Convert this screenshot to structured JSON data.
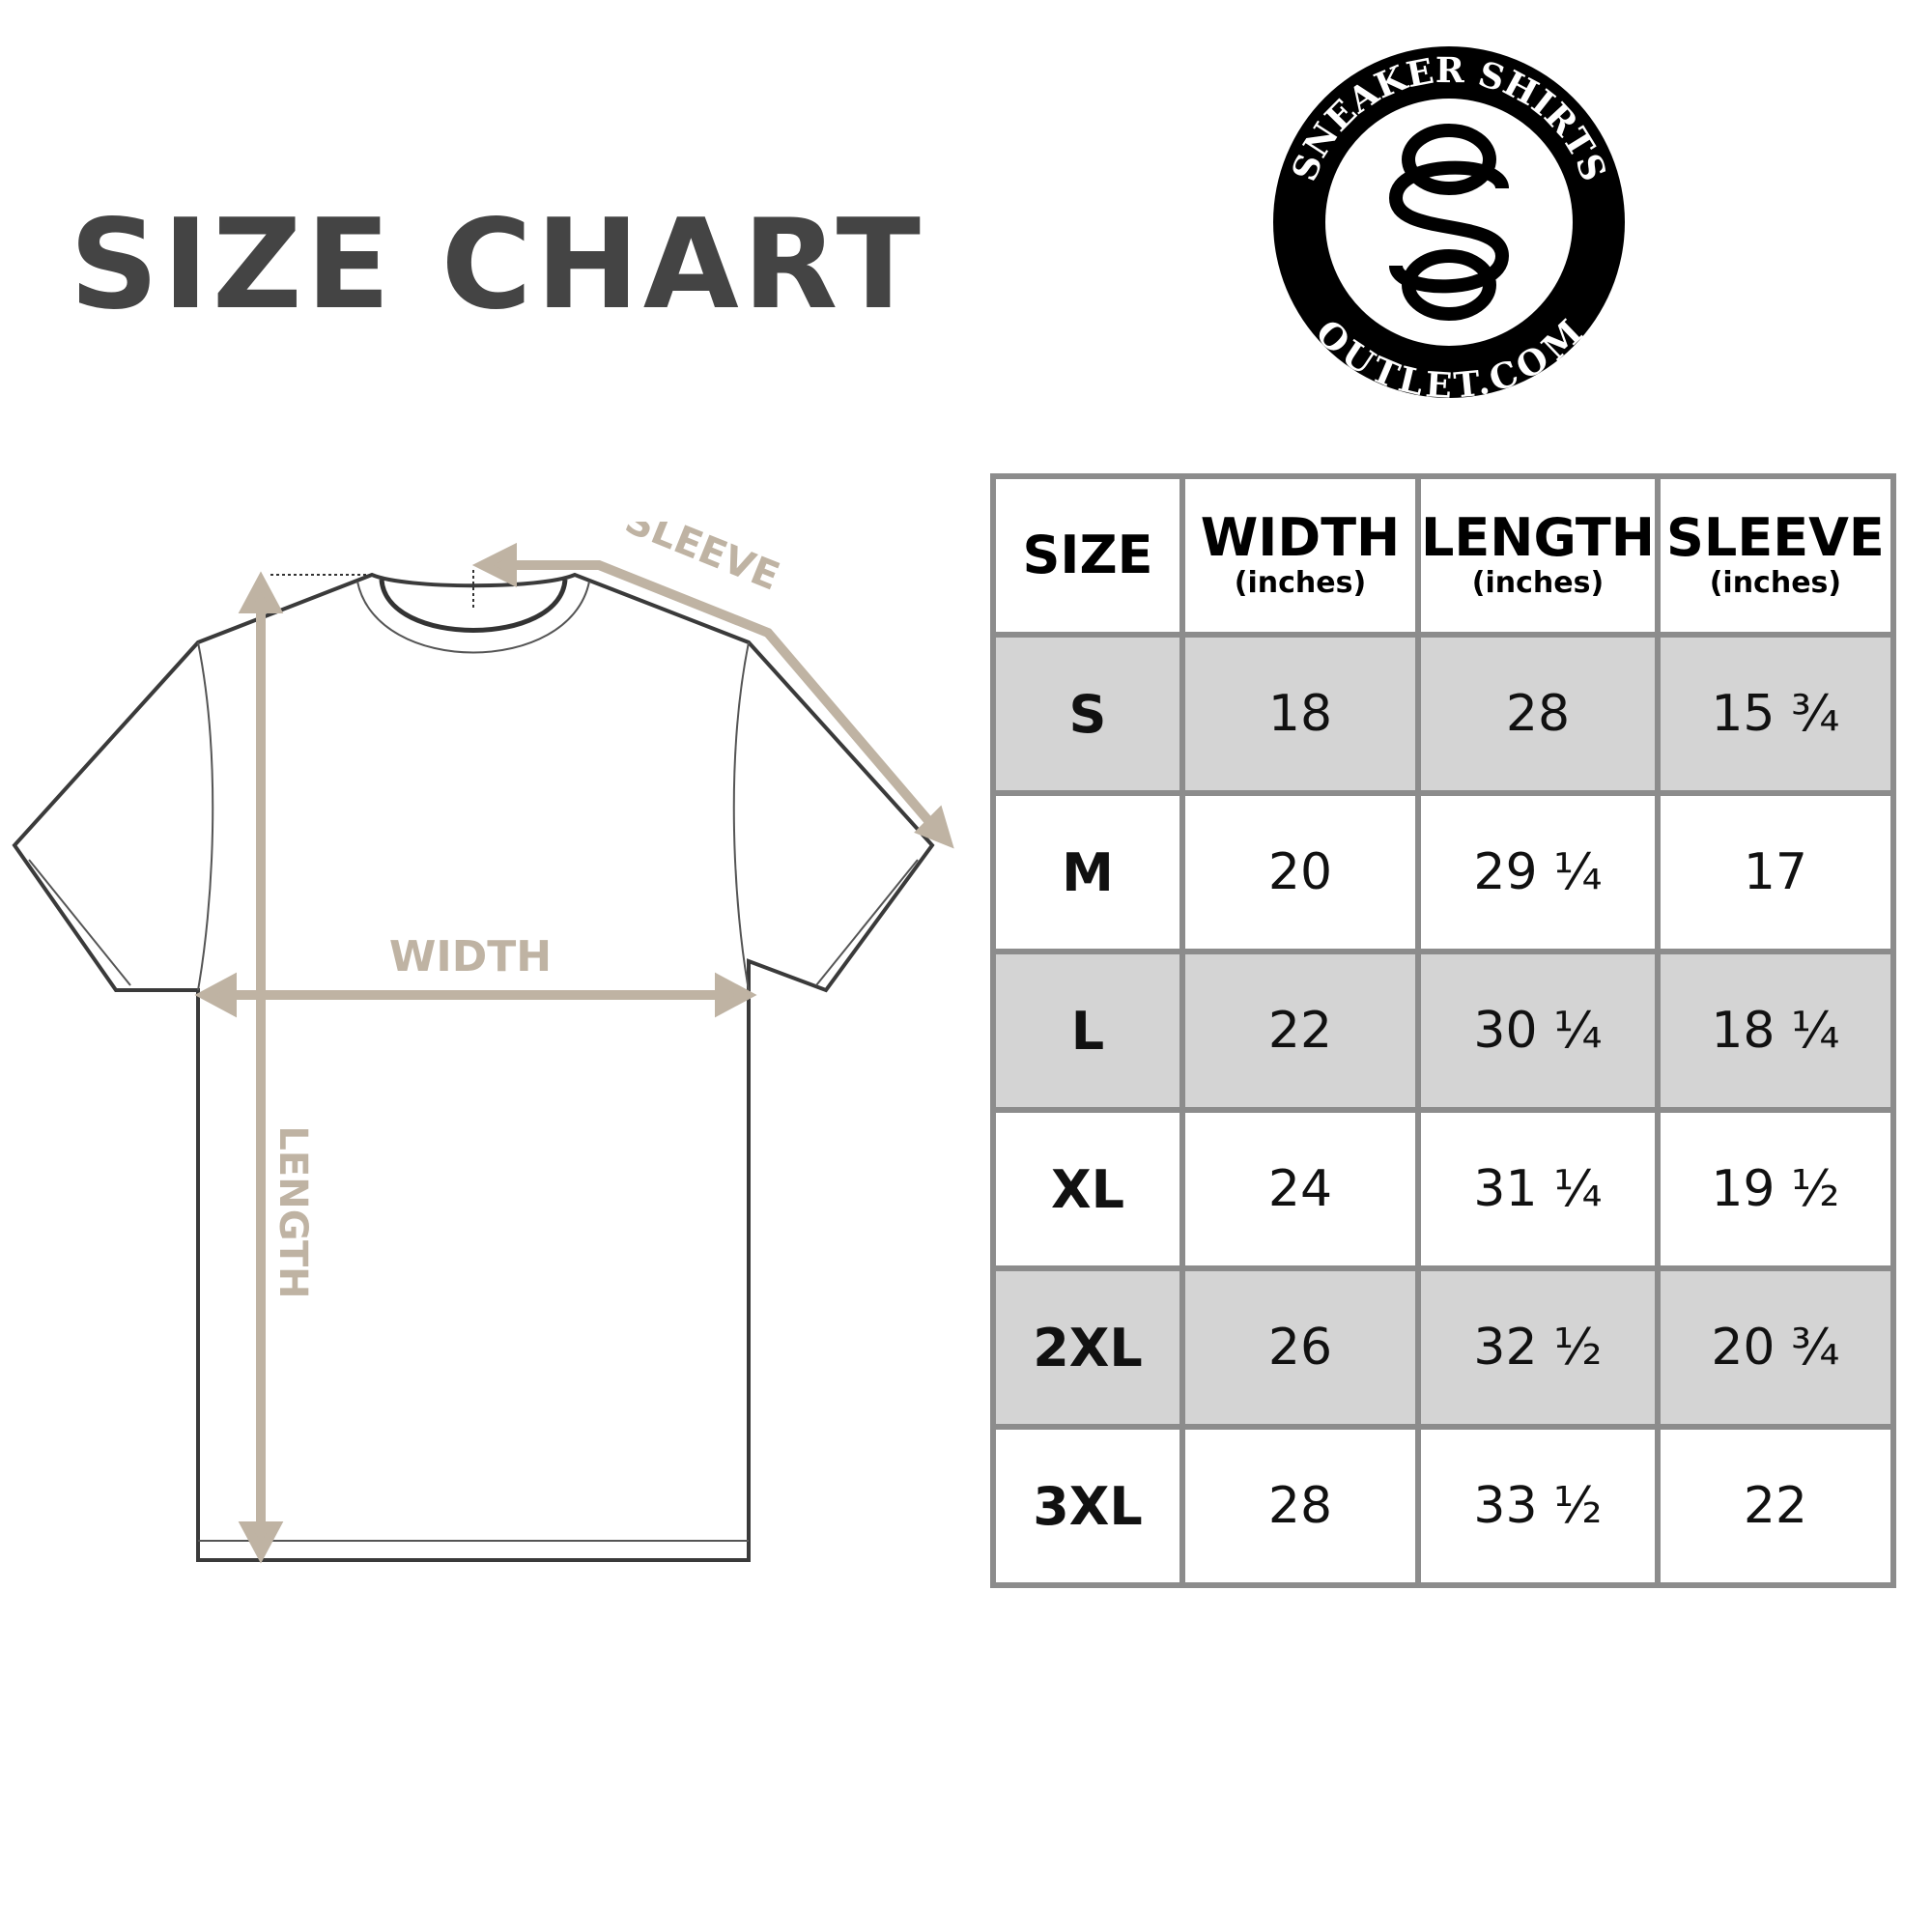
{
  "title": "SIZE CHART",
  "logo": {
    "top_text": "SNEAKER SHIRTS",
    "bottom_text": "OUTLET.COM",
    "monogram": "SSO"
  },
  "diagram": {
    "sleeve_label": "SLEEVE",
    "width_label": "WIDTH",
    "length_label": "LENGTH",
    "arrow_color": "#bfb3a3"
  },
  "table": {
    "headers": [
      {
        "label": "SIZE",
        "unit": ""
      },
      {
        "label": "WIDTH",
        "unit": "(inches)"
      },
      {
        "label": "LENGTH",
        "unit": "(inches)"
      },
      {
        "label": "SLEEVE",
        "unit": "(inches)"
      }
    ],
    "rows": [
      [
        "S",
        "18",
        "28",
        "15 ¾"
      ],
      [
        "M",
        "20",
        "29 ¼",
        "17"
      ],
      [
        "L",
        "22",
        "30 ¼",
        "18 ¼"
      ],
      [
        "XL",
        "24",
        "31 ¼",
        "19 ½"
      ],
      [
        "2XL",
        "26",
        "32 ½",
        "20 ¾"
      ],
      [
        "3XL",
        "28",
        "33 ½",
        "22"
      ]
    ]
  }
}
